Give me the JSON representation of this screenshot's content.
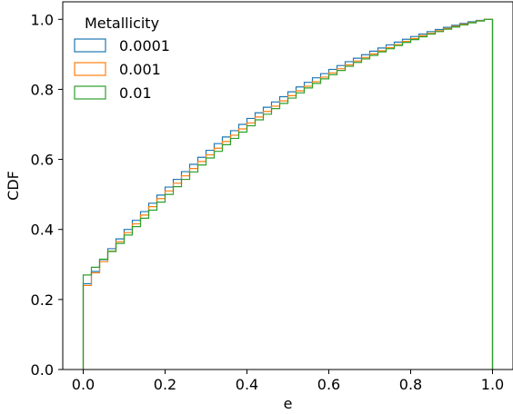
{
  "chart_data": {
    "type": "line",
    "style": "step",
    "xlabel": "e",
    "ylabel": "CDF",
    "xlim": [
      -0.05,
      1.05
    ],
    "ylim": [
      0.0,
      1.05
    ],
    "xticks": [
      "0.0",
      "0.2",
      "0.4",
      "0.6",
      "0.8",
      "1.0"
    ],
    "yticks": [
      "0.0",
      "0.2",
      "0.4",
      "0.6",
      "0.8",
      "1.0"
    ],
    "grid": false,
    "legend": {
      "title": "Metallicity",
      "position": "top-left"
    },
    "series": [
      {
        "name": "0.0001",
        "color": "#1f77b4",
        "x": [
          0.0,
          0.02,
          0.04,
          0.06,
          0.08,
          0.1,
          0.12,
          0.14,
          0.16,
          0.18,
          0.2,
          0.22,
          0.24,
          0.26,
          0.28,
          0.3,
          0.32,
          0.34,
          0.36,
          0.38,
          0.4,
          0.42,
          0.44,
          0.46,
          0.48,
          0.5,
          0.52,
          0.54,
          0.56,
          0.58,
          0.6,
          0.62,
          0.64,
          0.66,
          0.68,
          0.7,
          0.72,
          0.74,
          0.76,
          0.78,
          0.8,
          0.82,
          0.84,
          0.86,
          0.88,
          0.9,
          0.92,
          0.94,
          0.96,
          0.98,
          1.0
        ],
        "y": [
          0.245,
          0.28,
          0.314,
          0.345,
          0.373,
          0.4,
          0.426,
          0.451,
          0.475,
          0.498,
          0.521,
          0.543,
          0.565,
          0.586,
          0.606,
          0.626,
          0.645,
          0.664,
          0.682,
          0.7,
          0.717,
          0.733,
          0.749,
          0.764,
          0.779,
          0.793,
          0.807,
          0.82,
          0.833,
          0.845,
          0.857,
          0.868,
          0.879,
          0.889,
          0.899,
          0.909,
          0.918,
          0.927,
          0.935,
          0.943,
          0.951,
          0.958,
          0.965,
          0.971,
          0.977,
          0.983,
          0.988,
          0.993,
          0.997,
          1.0,
          0.0
        ]
      },
      {
        "name": "0.001",
        "color": "#ff7f0e",
        "x": [
          0.0,
          0.02,
          0.04,
          0.06,
          0.08,
          0.1,
          0.12,
          0.14,
          0.16,
          0.18,
          0.2,
          0.22,
          0.24,
          0.26,
          0.28,
          0.3,
          0.32,
          0.34,
          0.36,
          0.38,
          0.4,
          0.42,
          0.44,
          0.46,
          0.48,
          0.5,
          0.52,
          0.54,
          0.56,
          0.58,
          0.6,
          0.62,
          0.64,
          0.66,
          0.68,
          0.7,
          0.72,
          0.74,
          0.76,
          0.78,
          0.8,
          0.82,
          0.84,
          0.86,
          0.88,
          0.9,
          0.92,
          0.94,
          0.96,
          0.98,
          1.0
        ],
        "y": [
          0.24,
          0.276,
          0.308,
          0.338,
          0.365,
          0.391,
          0.416,
          0.441,
          0.465,
          0.488,
          0.51,
          0.532,
          0.553,
          0.574,
          0.594,
          0.613,
          0.632,
          0.651,
          0.669,
          0.687,
          0.704,
          0.721,
          0.737,
          0.752,
          0.767,
          0.782,
          0.796,
          0.809,
          0.822,
          0.835,
          0.847,
          0.859,
          0.87,
          0.881,
          0.891,
          0.901,
          0.91,
          0.919,
          0.928,
          0.937,
          0.945,
          0.953,
          0.96,
          0.967,
          0.974,
          0.98,
          0.986,
          0.991,
          0.996,
          1.0,
          0.0
        ]
      },
      {
        "name": "0.01",
        "color": "#2ca02c",
        "x": [
          0.0,
          0.02,
          0.04,
          0.06,
          0.08,
          0.1,
          0.12,
          0.14,
          0.16,
          0.18,
          0.2,
          0.22,
          0.24,
          0.26,
          0.28,
          0.3,
          0.32,
          0.34,
          0.36,
          0.38,
          0.4,
          0.42,
          0.44,
          0.46,
          0.48,
          0.5,
          0.52,
          0.54,
          0.56,
          0.58,
          0.6,
          0.62,
          0.64,
          0.66,
          0.68,
          0.7,
          0.72,
          0.74,
          0.76,
          0.78,
          0.8,
          0.82,
          0.84,
          0.86,
          0.88,
          0.9,
          0.92,
          0.94,
          0.96,
          0.98,
          1.0
        ],
        "y": [
          0.27,
          0.292,
          0.315,
          0.337,
          0.36,
          0.384,
          0.408,
          0.432,
          0.455,
          0.478,
          0.5,
          0.522,
          0.543,
          0.564,
          0.584,
          0.604,
          0.623,
          0.642,
          0.66,
          0.678,
          0.696,
          0.713,
          0.729,
          0.745,
          0.76,
          0.775,
          0.79,
          0.804,
          0.817,
          0.83,
          0.842,
          0.854,
          0.866,
          0.877,
          0.887,
          0.897,
          0.907,
          0.916,
          0.925,
          0.934,
          0.942,
          0.95,
          0.958,
          0.965,
          0.972,
          0.978,
          0.984,
          0.99,
          0.995,
          1.0,
          0.0
        ]
      }
    ]
  }
}
